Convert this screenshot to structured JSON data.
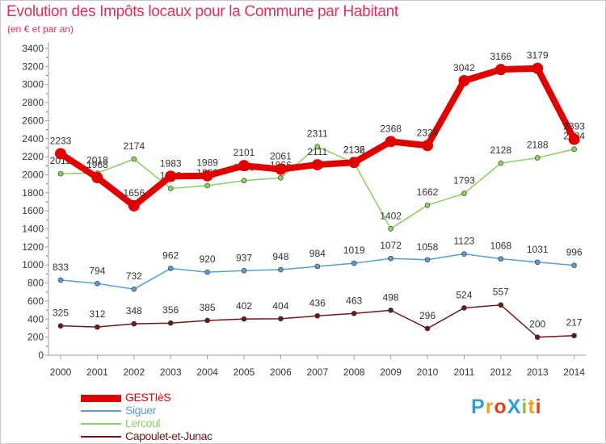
{
  "chart_data": {
    "type": "line",
    "title": "Evolution des Impôts locaux pour la Commune par Habitant",
    "subtitle": "(en € et par an)",
    "x": [
      "2000",
      "2001",
      "2002",
      "2003",
      "2004",
      "2005",
      "2006",
      "2007",
      "2008",
      "2009",
      "2010",
      "2011",
      "2012",
      "2013",
      "2014"
    ],
    "yticks": [
      0,
      200,
      400,
      600,
      800,
      1000,
      1200,
      1400,
      1600,
      1800,
      2000,
      2200,
      2400,
      2600,
      2800,
      3000,
      3200,
      3400
    ],
    "ylim": [
      0,
      3400
    ],
    "grid": false,
    "legend_position": "bottom-left",
    "series": [
      {
        "name": "GESTIèS",
        "color": "#e00000",
        "emphasis": true,
        "values": [
          2233,
          1968,
          1656,
          1983,
          1989,
          2101,
          2061,
          2111,
          2136,
          2368,
          2324,
          3042,
          3166,
          3179,
          2393
        ]
      },
      {
        "name": "Siguer",
        "color": "#5b9bd0",
        "values": [
          833,
          794,
          732,
          962,
          920,
          937,
          948,
          984,
          1019,
          1072,
          1058,
          1123,
          1068,
          1031,
          996
        ]
      },
      {
        "name": "Lercoul",
        "color": "#88d060",
        "values": [
          2012,
          2018,
          2174,
          1848,
          1880,
          1935,
          1966,
          2311,
          2132,
          1402,
          1662,
          1793,
          2128,
          2188,
          2284
        ]
      },
      {
        "name": "Capoulet-et-Junac",
        "color": "#6b1a1a",
        "values": [
          325,
          312,
          348,
          356,
          385,
          402,
          404,
          436,
          463,
          498,
          296,
          524,
          557,
          200,
          217
        ]
      }
    ]
  },
  "logo": {
    "letters": [
      {
        "ch": "P",
        "color": "#2b9fd8"
      },
      {
        "ch": "r",
        "color": "#f0a020"
      },
      {
        "ch": "o",
        "color": "#e84020"
      },
      {
        "ch": "X",
        "color": "#2b9fd8"
      },
      {
        "ch": "i",
        "color": "#88c040"
      },
      {
        "ch": "t",
        "color": "#f0a020"
      },
      {
        "ch": "i",
        "color": "#e84020"
      }
    ]
  }
}
